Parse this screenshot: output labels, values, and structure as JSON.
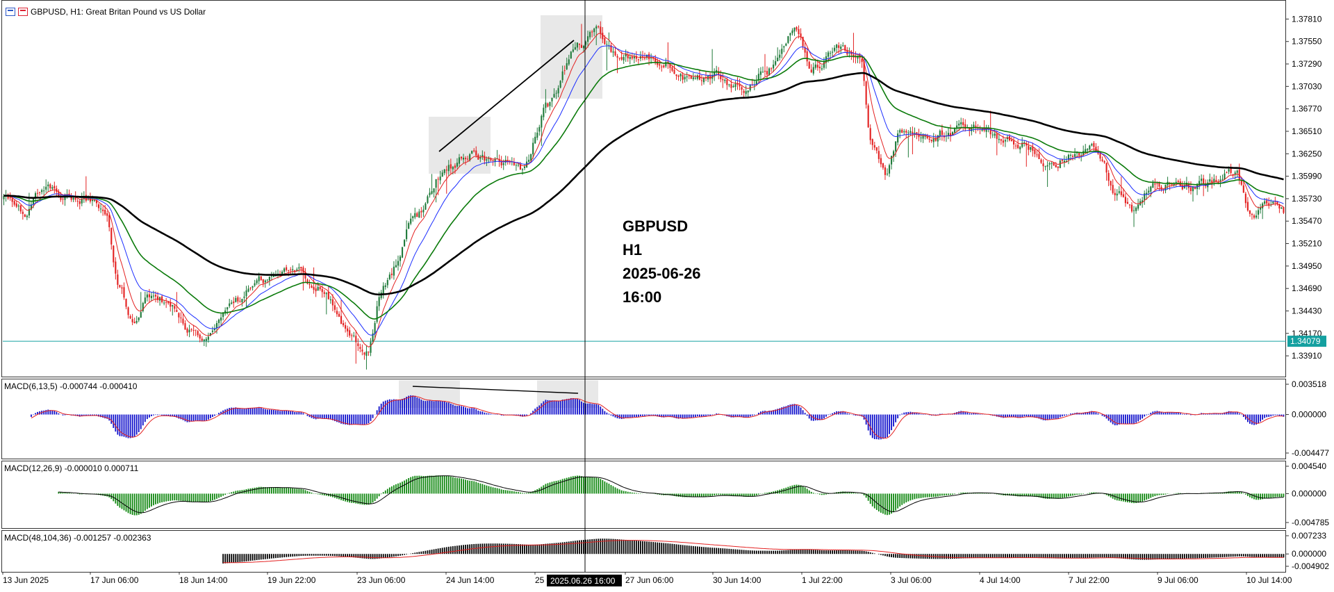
{
  "header": {
    "title": "GBPUSD, H1:  Great Britan Pound vs US Dollar",
    "icons": [
      "chart-list-icon",
      "chart-bars-icon"
    ]
  },
  "colors": {
    "bull": "#1f7a3a",
    "bear": "#e32020",
    "ema_fast": "#e32020",
    "ema_mid": "#1a2cff",
    "ema_slow": "#0a7a0a",
    "ma_long": "#000000",
    "macd1_hist": "#1111cc",
    "macd2_hist": "#118811",
    "macd3_hist": "#000000",
    "signal": "#e32020",
    "cursor": "#000000",
    "price_line": "#14a0a0"
  },
  "annotation": {
    "lines": [
      "GBPUSD",
      "H1",
      "2025-06-26",
      "16:00"
    ]
  },
  "main_axis": {
    "ticks": [
      "1.37810",
      "1.37550",
      "1.37290",
      "1.37030",
      "1.36770",
      "1.36510",
      "1.36250",
      "1.35990",
      "1.35730",
      "1.35470",
      "1.35210",
      "1.34950",
      "1.34690",
      "1.34430",
      "1.34170",
      "1.33910"
    ],
    "current_price": "1.34079"
  },
  "time_axis": {
    "labels": [
      "13 Jun 2025",
      "17 Jun 06:00",
      "18 Jun 14:00",
      "19 Jun 22:00",
      "23 Jun 06:00",
      "24 Jun 14:00",
      "25",
      "2025.06.26 16:00",
      "27 Jun 06:00",
      "30 Jun 14:00",
      "1 Jul 22:00",
      "3 Jul 06:00",
      "4 Jul 14:00",
      "7 Jul 22:00",
      "9 Jul 06:00",
      "10 Jul 14:00"
    ],
    "cursor_label": "2025.06.26 16:00"
  },
  "macd1": {
    "label": "MACD(6,13,5) -0.000744 -0.000410",
    "ticks": [
      "0.003518",
      "0.000000",
      "-0.004477"
    ]
  },
  "macd2": {
    "label": "MACD(12,26,9) -0.000010 0.000711",
    "ticks": [
      "0.004540",
      "0.000000",
      "-0.004785"
    ]
  },
  "macd3": {
    "label": "MACD(48,104,36) -0.001257 -0.002363",
    "ticks": [
      "0.007233",
      "0.000000",
      "-0.004902"
    ]
  },
  "chart_data": {
    "type": "candlestick",
    "symbol": "GBPUSD",
    "timeframe": "H1",
    "ylim": [
      1.3375,
      1.3795
    ],
    "price_anchors": [
      [
        0,
        1.3575
      ],
      [
        10,
        1.3558
      ],
      [
        20,
        1.359
      ],
      [
        30,
        1.3575
      ],
      [
        40,
        1.3572
      ],
      [
        48,
        1.356
      ],
      [
        55,
        1.3465
      ],
      [
        60,
        1.343
      ],
      [
        70,
        1.3462
      ],
      [
        78,
        1.3455
      ],
      [
        88,
        1.342
      ],
      [
        96,
        1.3408
      ],
      [
        110,
        1.3455
      ],
      [
        122,
        1.348
      ],
      [
        138,
        1.349
      ],
      [
        150,
        1.347
      ],
      [
        164,
        1.3415
      ],
      [
        172,
        1.3395
      ],
      [
        180,
        1.347
      ],
      [
        196,
        1.3555
      ],
      [
        210,
        1.361
      ],
      [
        222,
        1.3625
      ],
      [
        234,
        1.3615
      ],
      [
        246,
        1.361
      ],
      [
        258,
        1.368
      ],
      [
        272,
        1.375
      ],
      [
        282,
        1.3765
      ],
      [
        292,
        1.3735
      ],
      [
        302,
        1.374
      ],
      [
        314,
        1.373
      ],
      [
        326,
        1.371
      ],
      [
        338,
        1.3715
      ],
      [
        350,
        1.37
      ],
      [
        362,
        1.3722
      ],
      [
        374,
        1.3768
      ],
      [
        384,
        1.3725
      ],
      [
        396,
        1.3745
      ],
      [
        406,
        1.3735
      ],
      [
        412,
        1.363
      ],
      [
        418,
        1.36
      ],
      [
        426,
        1.365
      ],
      [
        436,
        1.364
      ],
      [
        448,
        1.365
      ],
      [
        460,
        1.3655
      ],
      [
        472,
        1.3645
      ],
      [
        484,
        1.3635
      ],
      [
        496,
        1.361
      ],
      [
        506,
        1.3625
      ],
      [
        518,
        1.363
      ],
      [
        528,
        1.358
      ],
      [
        536,
        1.3555
      ],
      [
        546,
        1.359
      ],
      [
        560,
        1.3585
      ],
      [
        572,
        1.359
      ],
      [
        584,
        1.3605
      ],
      [
        592,
        1.3555
      ],
      [
        600,
        1.357
      ],
      [
        608,
        1.3555
      ]
    ],
    "candle_count": 608
  }
}
